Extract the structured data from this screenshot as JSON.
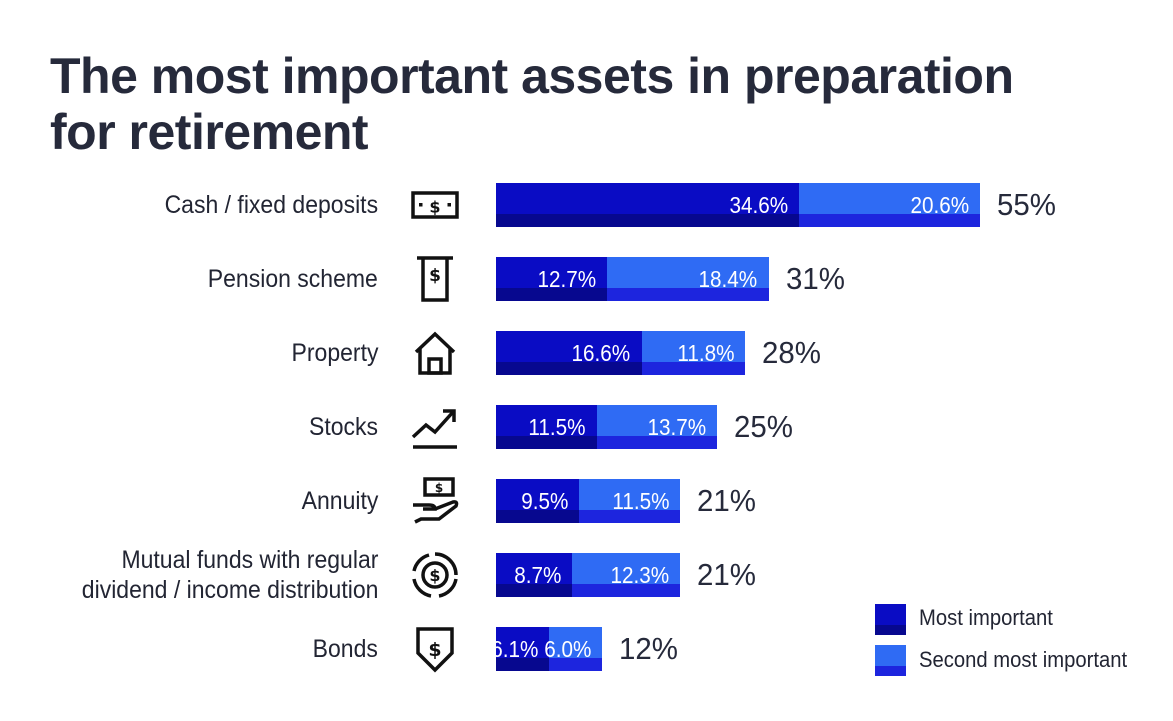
{
  "chart_data": {
    "type": "bar",
    "orientation": "horizontal",
    "stacked": true,
    "title": "The most important assets in preparation for retirement",
    "categories": [
      "Cash / fixed deposits",
      "Pension scheme",
      "Property",
      "Stocks",
      "Annuity",
      "Mutual funds with regular dividend / income distribution",
      "Bonds"
    ],
    "category_lines": [
      [
        "Cash / fixed deposits"
      ],
      [
        "Pension scheme"
      ],
      [
        "Property"
      ],
      [
        "Stocks"
      ],
      [
        "Annuity"
      ],
      [
        "Mutual funds with regular",
        "dividend / income distribution"
      ],
      [
        "Bonds"
      ]
    ],
    "icons": [
      "cash-icon",
      "pension-document-icon",
      "house-icon",
      "trending-up-icon",
      "hand-holding-cash-icon",
      "dollar-cycle-icon",
      "dollar-shield-icon"
    ],
    "series": [
      {
        "name": "Most important",
        "values": [
          34.6,
          12.7,
          16.6,
          11.5,
          9.5,
          8.7,
          6.1
        ],
        "labels": [
          "34.6%",
          "12.7%",
          "16.6%",
          "11.5%",
          "9.5%",
          "8.7%",
          "6.1%"
        ],
        "color": "#0a0cc4"
      },
      {
        "name": "Second most important",
        "values": [
          20.6,
          18.4,
          11.8,
          13.7,
          11.5,
          12.3,
          6.0
        ],
        "labels": [
          "20.6%",
          "18.4%",
          "11.8%",
          "13.7%",
          "11.5%",
          "12.3%",
          "6.0%"
        ],
        "color": "#2f6bf4"
      }
    ],
    "totals": [
      "55%",
      "31%",
      "28%",
      "25%",
      "21%",
      "21%",
      "12%"
    ],
    "legend_position": "bottom-right",
    "grid": false,
    "xlim": [
      0,
      55.2
    ]
  }
}
